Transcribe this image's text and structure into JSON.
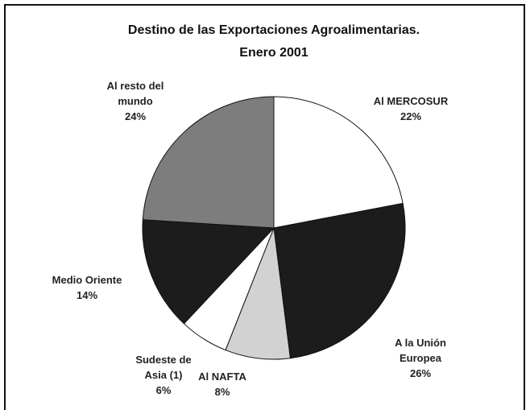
{
  "chart_data": {
    "type": "pie",
    "title": "Destino de las Exportaciones Agroalimentarias.",
    "subtitle": "Enero 2001",
    "categories": [
      "Al MERCOSUR",
      "A la Unión Europea",
      "Al NAFTA",
      "Sudeste de Asia (1)",
      "Medio Oriente",
      "Al resto del mundo"
    ],
    "values": [
      22,
      26,
      8,
      6,
      14,
      24
    ],
    "value_labels": [
      "22%",
      "26%",
      "8%",
      "6%",
      "14%",
      "24%"
    ],
    "colors": [
      "#ffffff",
      "#1c1c1c",
      "#d2d2d2",
      "#ffffff",
      "#1c1c1c",
      "#7d7d7d"
    ]
  }
}
